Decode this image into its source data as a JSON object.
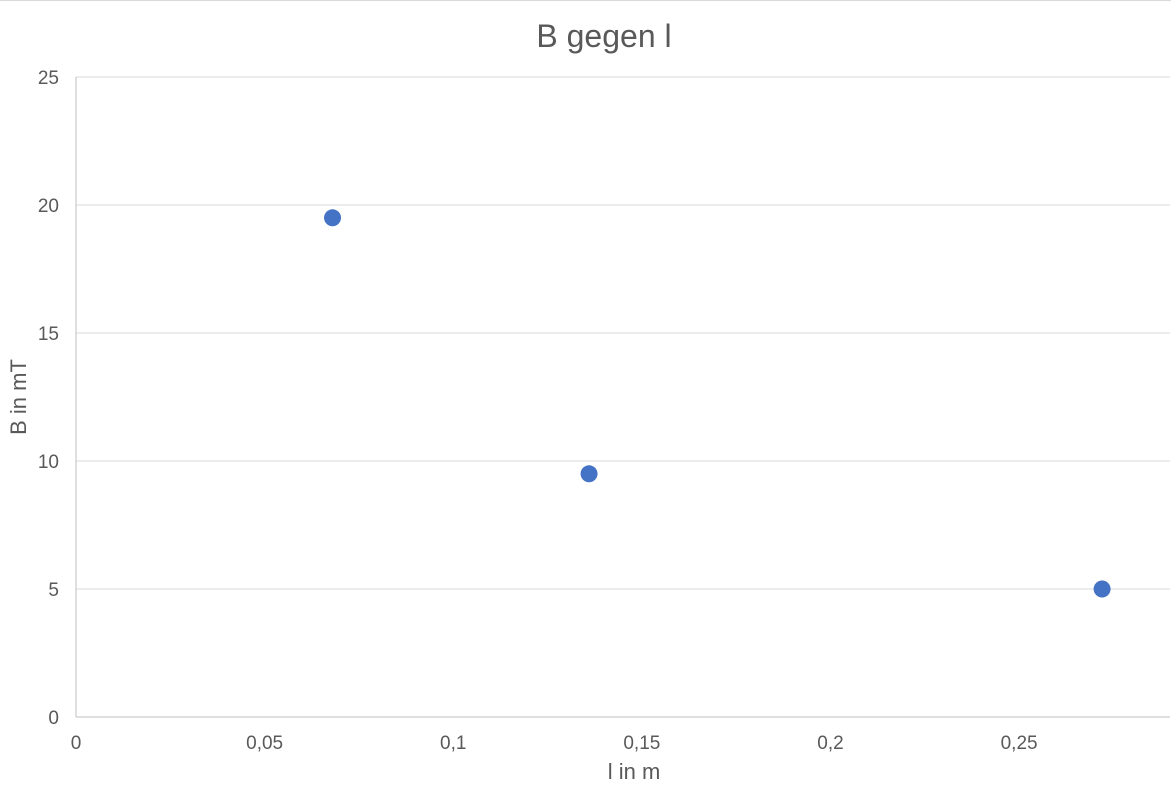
{
  "chart_data": {
    "type": "scatter",
    "title": "B gegen l",
    "xlabel": "l in m",
    "ylabel": "B in mT",
    "xlim": [
      0,
      0.29
    ],
    "ylim": [
      0,
      25
    ],
    "x_ticks": [
      0,
      0.05,
      0.1,
      0.15,
      0.2,
      0.25
    ],
    "x_tick_labels": [
      "0",
      "0,05",
      "0,1",
      "0,15",
      "0,2",
      "0,25"
    ],
    "y_ticks": [
      0,
      5,
      10,
      15,
      20,
      25
    ],
    "y_tick_labels": [
      "0",
      "5",
      "10",
      "15",
      "20",
      "25"
    ],
    "grid": "horizontal",
    "legend": "none",
    "series": [
      {
        "x": [
          0.068,
          0.136,
          0.272
        ],
        "y": [
          19.5,
          9.5,
          5.0
        ],
        "color": "#4472c4"
      }
    ],
    "colors": {
      "marker": "#4472c4",
      "grid": "#d9d9d9",
      "axis": "#bfbfbf",
      "text": "#595959"
    }
  }
}
